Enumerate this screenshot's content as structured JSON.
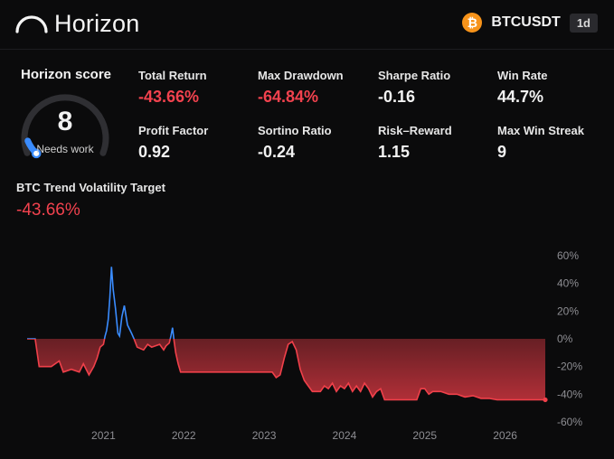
{
  "app": {
    "name": "Horizon"
  },
  "ticker": {
    "icon": "bitcoin-icon",
    "symbol": "BTCUSDT",
    "timeframe": "1d",
    "icon_color": "#f7931a",
    "icon_glyph": "₿"
  },
  "score": {
    "title": "Horizon score",
    "value": "8",
    "label": "Needs work",
    "fraction": 0.08,
    "marker_color": "#3a8cff"
  },
  "metrics": [
    {
      "label": "Total Return",
      "value": "-43.66%",
      "negative": true
    },
    {
      "label": "Max Drawdown",
      "value": "-64.84%",
      "negative": true
    },
    {
      "label": "Sharpe Ratio",
      "value": "-0.16",
      "negative": false
    },
    {
      "label": "Win Rate",
      "value": "44.7%",
      "negative": false
    },
    {
      "label": "Profit Factor",
      "value": "0.92",
      "negative": false
    },
    {
      "label": "Sortino Ratio",
      "value": "-0.24",
      "negative": false
    },
    {
      "label": "Risk–Reward",
      "value": "1.15",
      "negative": false
    },
    {
      "label": "Max Win Streak",
      "value": "9",
      "negative": false
    }
  ],
  "strategy": {
    "name": "BTC Trend Volatility Target",
    "return": "-43.66%"
  },
  "colors": {
    "negative": "#f2424e",
    "positive_line": "#3a8cff",
    "negative_line": "#f0404a"
  },
  "chart_data": {
    "type": "line",
    "ylabel": "",
    "ylim": [
      -60,
      60
    ],
    "yticks": [
      "60%",
      "40%",
      "20%",
      "0%",
      "-20%",
      "-40%",
      "-60%"
    ],
    "yticks_values": [
      60,
      40,
      20,
      0,
      -20,
      -40,
      -60
    ],
    "xlim": [
      2020.05,
      2026.5
    ],
    "xticks": [
      "2021",
      "2022",
      "2023",
      "2024",
      "2025",
      "2026"
    ],
    "xticks_values": [
      2021,
      2022,
      2023,
      2024,
      2025,
      2026
    ],
    "series": [
      {
        "x": [
          2020.05,
          2020.15,
          2020.2,
          2020.25,
          2020.35,
          2020.45,
          2020.5,
          2020.6,
          2020.7,
          2020.75,
          2020.82,
          2020.88,
          2020.92,
          2020.96,
          2021.0,
          2021.02,
          2021.04,
          2021.06,
          2021.08,
          2021.1,
          2021.12,
          2021.15,
          2021.18,
          2021.2,
          2021.23,
          2021.26,
          2021.3,
          2021.35,
          2021.38,
          2021.42,
          2021.5,
          2021.55,
          2021.6,
          2021.7,
          2021.75,
          2021.78,
          2021.82,
          2021.84,
          2021.86,
          2021.88,
          2021.9,
          2021.93,
          2021.96,
          2022.0,
          2022.2,
          2022.5,
          2022.8,
          2022.95,
          2023.0,
          2023.05,
          2023.1,
          2023.15,
          2023.2,
          2023.25,
          2023.3,
          2023.35,
          2023.4,
          2023.45,
          2023.5,
          2023.55,
          2023.6,
          2023.7,
          2023.75,
          2023.8,
          2023.85,
          2023.9,
          2023.95,
          2024.0,
          2024.05,
          2024.1,
          2024.15,
          2024.2,
          2024.25,
          2024.3,
          2024.35,
          2024.4,
          2024.45,
          2024.5,
          2024.55,
          2024.6,
          2024.7,
          2024.8,
          2024.9,
          2024.95,
          2025.0,
          2025.05,
          2025.1,
          2025.2,
          2025.3,
          2025.4,
          2025.5,
          2025.6,
          2025.7,
          2025.8,
          2025.9,
          2026.0,
          2026.2,
          2026.4,
          2026.5
        ],
        "y": [
          0,
          0,
          -20,
          -20,
          -20,
          -16,
          -24,
          -22,
          -24,
          -18,
          -26,
          -20,
          -14,
          -6,
          -4,
          2,
          6,
          14,
          30,
          52,
          36,
          22,
          4,
          2,
          16,
          24,
          10,
          4,
          0,
          -6,
          -8,
          -4,
          -6,
          -4,
          -8,
          -5,
          -3,
          2,
          8,
          -2,
          -10,
          -18,
          -24,
          -24,
          -24,
          -24,
          -24,
          -24,
          -24,
          -24,
          -24,
          -28,
          -26,
          -14,
          -4,
          -2,
          -8,
          -22,
          -30,
          -34,
          -38,
          -38,
          -34,
          -36,
          -32,
          -38,
          -34,
          -36,
          -32,
          -38,
          -34,
          -38,
          -32,
          -36,
          -42,
          -38,
          -36,
          -44,
          -44,
          -44,
          -44,
          -44,
          -44,
          -36,
          -36,
          -40,
          -38,
          -38,
          -40,
          -40,
          -42,
          -41,
          -43,
          -43,
          -44,
          -44,
          -44,
          -44,
          -44
        ]
      }
    ],
    "end_marker": true,
    "grid": false
  }
}
